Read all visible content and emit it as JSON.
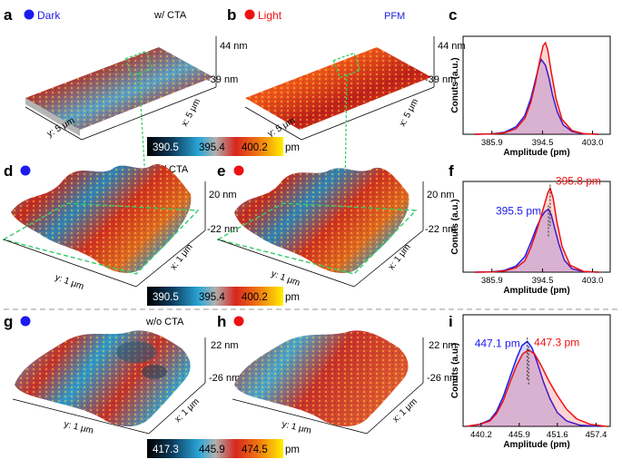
{
  "colors": {
    "dark_marker": "#1b1bf0",
    "light_marker": "#ee1111",
    "pfm_text": "#2020e0",
    "guide_green": "#33cc66",
    "separator": "#aaaaaa",
    "surface_red": "#c8251c",
    "surface_blue": "#3aa0cc"
  },
  "panels": {
    "a": {
      "label": "a",
      "legend": "Dark",
      "note": "w/ CTA",
      "z_top": "44 nm",
      "z_bottom": "-39 nm",
      "y_axis": "y: 5 μm",
      "x_axis": "x: 5 μm"
    },
    "b": {
      "label": "b",
      "legend": "Light",
      "note": "PFM",
      "z_top": "44 nm",
      "z_bottom": "-39 nm",
      "y_axis": "y: 5 μm",
      "x_axis": "x: 5 μm"
    },
    "d": {
      "label": "d",
      "note": "w/ CTA",
      "z_top": "20 nm",
      "z_bottom": "-22 nm",
      "y_axis": "y: 1 μm",
      "x_axis": "x: 1 μm"
    },
    "e": {
      "label": "e",
      "z_top": "20 nm",
      "z_bottom": "-22 nm",
      "y_axis": "y: 1 μm",
      "x_axis": "x: 1 μm"
    },
    "g": {
      "label": "g",
      "note": "w/o CTA",
      "z_top": "22 nm",
      "z_bottom": "-26 nm",
      "y_axis": "y: 1 μm",
      "x_axis": "x: 1 μm"
    },
    "h": {
      "label": "h",
      "z_top": "22 nm",
      "z_bottom": "-26 nm",
      "y_axis": "y: 1 μm",
      "x_axis": "x: 1 μm"
    }
  },
  "colorbars": [
    {
      "v1": "390.5",
      "v2": "395.4",
      "v3": "400.2",
      "unit": "pm"
    },
    {
      "v1": "390.5",
      "v2": "395.4",
      "v3": "400.2",
      "unit": "pm"
    },
    {
      "v1": "417.3",
      "v2": "445.9",
      "v3": "474.5",
      "unit": "pm"
    }
  ],
  "chart_data": [
    {
      "type": "area",
      "panel": "c",
      "xlabel": "Amplitude (pm)",
      "ylabel": "Conuts (a.u.)",
      "x_ticks": [
        "385.9",
        "394.5",
        "403.0"
      ],
      "xlim": [
        381.0,
        406.0
      ],
      "ylim": [
        0,
        1.05
      ],
      "series": [
        {
          "color": "#1b1bf0",
          "x": [
            383,
            386,
            388,
            390,
            391.5,
            392.5,
            393.3,
            394.0,
            394.3,
            395.0,
            395.6,
            396.2,
            397.0,
            398.0,
            399.5,
            401.5,
            404
          ],
          "y": [
            0,
            0.005,
            0.02,
            0.08,
            0.2,
            0.38,
            0.58,
            0.76,
            0.8,
            0.74,
            0.6,
            0.42,
            0.24,
            0.1,
            0.03,
            0.005,
            0
          ]
        },
        {
          "color": "#ee1111",
          "x": [
            383,
            386,
            388,
            390,
            391.5,
            392.5,
            393.3,
            394.0,
            394.6,
            395.0,
            395.4,
            396.0,
            396.8,
            397.8,
            399.5,
            401.5,
            404
          ],
          "y": [
            0,
            0.004,
            0.015,
            0.06,
            0.17,
            0.34,
            0.55,
            0.78,
            0.95,
            0.98,
            0.9,
            0.66,
            0.38,
            0.16,
            0.04,
            0.006,
            0
          ]
        }
      ]
    },
    {
      "type": "area",
      "panel": "f",
      "xlabel": "Amplitude (pm)",
      "ylabel": "Conuts (a.u.)",
      "x_ticks": [
        "385.9",
        "394.5",
        "403.0"
      ],
      "xlim": [
        381.0,
        406.0
      ],
      "ylim": [
        0,
        1.05
      ],
      "annotations": [
        {
          "text": "395.5 pm",
          "color": "#1b1bf0",
          "x": 395.5
        },
        {
          "text": "395.8 pm",
          "color": "#ee1111",
          "x": 395.8
        }
      ],
      "series": [
        {
          "color": "#1b1bf0",
          "x": [
            383,
            386,
            388,
            390,
            391.5,
            392.5,
            393.5,
            394.3,
            394.9,
            395.5,
            396.0,
            396.6,
            397.3,
            398.2,
            399.5,
            401.5,
            404
          ],
          "y": [
            0,
            0.004,
            0.02,
            0.07,
            0.18,
            0.34,
            0.52,
            0.64,
            0.7,
            0.73,
            0.66,
            0.5,
            0.32,
            0.14,
            0.04,
            0.006,
            0
          ]
        },
        {
          "color": "#ee1111",
          "x": [
            383,
            386,
            388,
            390,
            391.5,
            392.5,
            393.5,
            394.3,
            394.9,
            395.4,
            395.8,
            396.3,
            396.9,
            397.8,
            399.2,
            401.5,
            404
          ],
          "y": [
            0,
            0.003,
            0.015,
            0.05,
            0.13,
            0.28,
            0.48,
            0.66,
            0.8,
            0.92,
            0.97,
            0.86,
            0.6,
            0.3,
            0.08,
            0.008,
            0
          ]
        }
      ]
    },
    {
      "type": "area",
      "panel": "i",
      "xlabel": "Amplitude (pm)",
      "ylabel": "Conuts (a.u.)",
      "x_ticks": [
        "440.2",
        "445.9",
        "451.6",
        "457.4"
      ],
      "xlim": [
        437.5,
        459.5
      ],
      "ylim": [
        0,
        1.05
      ],
      "annotations": [
        {
          "text": "447.1 pm",
          "color": "#1b1bf0",
          "x": 447.1
        },
        {
          "text": "447.3 pm",
          "color": "#ee1111",
          "x": 447.3
        }
      ],
      "series": [
        {
          "color": "#1b1bf0",
          "x": [
            438,
            440,
            441.5,
            442.5,
            443.5,
            444.5,
            445.5,
            446.3,
            447.1,
            447.8,
            448.6,
            449.5,
            450.5,
            451.6,
            453,
            455,
            458
          ],
          "y": [
            0,
            0.02,
            0.06,
            0.14,
            0.28,
            0.46,
            0.64,
            0.76,
            0.8,
            0.74,
            0.6,
            0.42,
            0.26,
            0.13,
            0.05,
            0.01,
            0
          ]
        },
        {
          "color": "#ee1111",
          "x": [
            438,
            440,
            441.5,
            442.5,
            443.5,
            444.5,
            445.5,
            446.4,
            447.3,
            448.2,
            449.2,
            450.3,
            451.6,
            453,
            454.5,
            456.5,
            459
          ],
          "y": [
            0,
            0.02,
            0.05,
            0.12,
            0.24,
            0.41,
            0.57,
            0.68,
            0.72,
            0.68,
            0.57,
            0.43,
            0.29,
            0.16,
            0.07,
            0.02,
            0
          ]
        }
      ]
    }
  ],
  "chart_panels": {
    "c": {
      "label": "c"
    },
    "f": {
      "label": "f"
    },
    "i": {
      "label": "i"
    }
  }
}
